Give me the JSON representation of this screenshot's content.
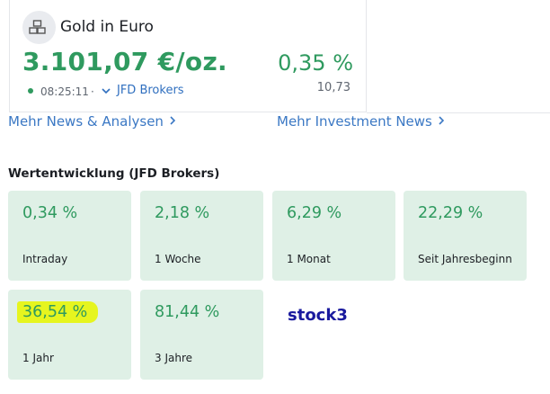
{
  "header": {
    "title": "Gold in Euro",
    "price": "3.101,07 €/oz.",
    "time": "08:25:11",
    "separator": "·",
    "broker": "JFD Brokers",
    "change_percent": "0,35 %",
    "change_absolute": "10,73"
  },
  "links": [
    "Mehr News & Analysen",
    "Mehr Investment News"
  ],
  "performance": {
    "title": "Wertentwicklung (JFD Brokers)",
    "tiles": [
      {
        "value": "0,34 %",
        "label": "Intraday"
      },
      {
        "value": "2,18 %",
        "label": "1 Woche"
      },
      {
        "value": "6,29 %",
        "label": "1 Monat"
      },
      {
        "value": "22,29 %",
        "label": "Seit Jahresbeginn"
      },
      {
        "value": "36,54 %",
        "label": "1 Jahr"
      },
      {
        "value": "81,44 %",
        "label": "3 Jahre"
      }
    ]
  },
  "watermark": "stock3"
}
